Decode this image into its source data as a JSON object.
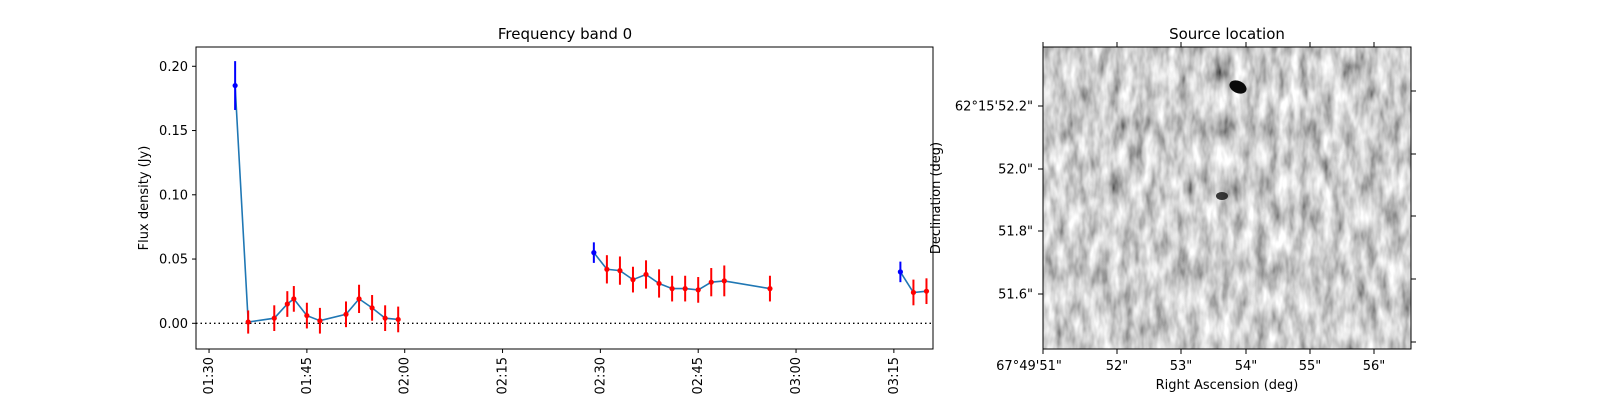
{
  "chart_data": [
    {
      "type": "line",
      "title": "Frequency band 0",
      "xlabel": "",
      "ylabel": "Flux density (Jy)",
      "x_ticks": [
        "01:30",
        "01:45",
        "02:00",
        "02:15",
        "02:30",
        "02:45",
        "03:00",
        "03:15"
      ],
      "y_ticks": [
        "0.00",
        "0.05",
        "0.10",
        "0.15",
        "0.20"
      ],
      "xlim": [
        "01:28",
        "03:21"
      ],
      "ylim": [
        -0.02,
        0.215
      ],
      "line_color": "#1f77b4",
      "zero_line": {
        "y": 0.0,
        "style": "dotted"
      },
      "segments": [
        {
          "x": [
            "01:34",
            "01:36",
            "01:40",
            "01:42",
            "01:43",
            "01:45",
            "01:47",
            "01:51",
            "01:53",
            "01:55",
            "01:57",
            "01:59"
          ],
          "y": [
            0.185,
            0.001,
            0.004,
            0.015,
            0.019,
            0.006,
            0.002,
            0.007,
            0.019,
            0.012,
            0.004,
            0.003
          ],
          "err": [
            0.019,
            0.009,
            0.01,
            0.01,
            0.01,
            0.01,
            0.01,
            0.01,
            0.011,
            0.01,
            0.01,
            0.01
          ],
          "colors": [
            "#0000ff",
            "#ff0000",
            "#ff0000",
            "#ff0000",
            "#ff0000",
            "#ff0000",
            "#ff0000",
            "#ff0000",
            "#ff0000",
            "#ff0000",
            "#ff0000",
            "#ff0000"
          ]
        },
        {
          "x": [
            "02:29",
            "02:31",
            "02:33",
            "02:35",
            "02:37",
            "02:39",
            "02:41",
            "02:43",
            "02:45",
            "02:47",
            "02:49",
            "02:56"
          ],
          "y": [
            0.055,
            0.042,
            0.041,
            0.034,
            0.038,
            0.031,
            0.027,
            0.027,
            0.026,
            0.032,
            0.033,
            0.027
          ],
          "err": [
            0.008,
            0.011,
            0.011,
            0.01,
            0.011,
            0.011,
            0.01,
            0.01,
            0.01,
            0.011,
            0.012,
            0.01
          ],
          "colors": [
            "#0000ff",
            "#ff0000",
            "#ff0000",
            "#ff0000",
            "#ff0000",
            "#ff0000",
            "#ff0000",
            "#ff0000",
            "#ff0000",
            "#ff0000",
            "#ff0000",
            "#ff0000"
          ]
        },
        {
          "x": [
            "03:16",
            "03:18",
            "03:20"
          ],
          "y": [
            0.04,
            0.024,
            0.025
          ],
          "err": [
            0.008,
            0.01,
            0.01
          ],
          "colors": [
            "#0000ff",
            "#ff0000",
            "#ff0000"
          ]
        }
      ]
    },
    {
      "type": "heatmap",
      "title": "Source location",
      "xlabel": "Right Ascension (deg)",
      "ylabel": "Declination (deg)",
      "x_ticks": [
        "67°49'51\"",
        "52\"",
        "53\"",
        "54\"",
        "55\"",
        "56\""
      ],
      "y_ticks": [
        "62°15'52.2\"",
        "52.0\"",
        "51.8\"",
        "51.6\""
      ],
      "colormap": "grayscale"
    }
  ]
}
